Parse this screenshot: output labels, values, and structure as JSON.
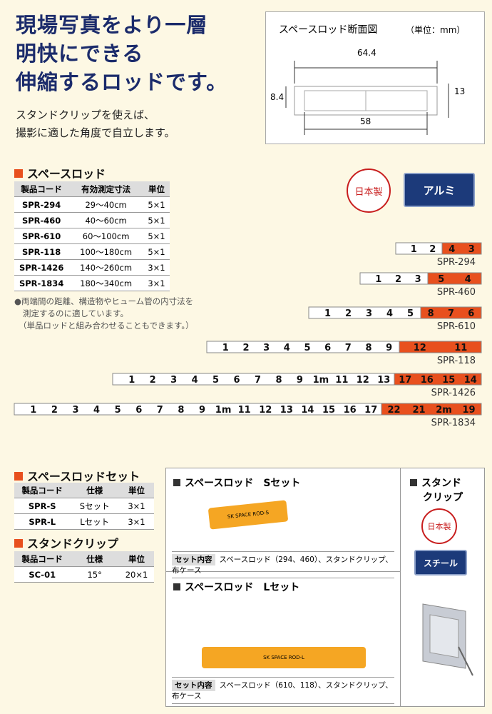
{
  "headline": [
    "現場写真をより一層",
    "明快にできる",
    "伸縮するロッドです。"
  ],
  "intro": [
    "スタンドクリップを使えば、",
    "撮影に適した角度で自立します。"
  ],
  "cross_section": {
    "title": "スペースロッド断面図",
    "unit": "（単位：mm）",
    "width_outer": "64.4",
    "height_left": "8.4",
    "height_right": "13",
    "width_inner": "58"
  },
  "space_rod": {
    "title": "スペースロッド",
    "header": [
      "製品コード",
      "有効測定寸法",
      "単位"
    ],
    "rows": [
      [
        "SPR-294",
        "29～40cm",
        "5×1"
      ],
      [
        "SPR-460",
        "40～60cm",
        "5×1"
      ],
      [
        "SPR-610",
        "60～100cm",
        "5×1"
      ],
      [
        "SPR-118",
        "100～180cm",
        "5×1"
      ],
      [
        "SPR-1426",
        "140～260cm",
        "3×1"
      ],
      [
        "SPR-1834",
        "180～340cm",
        "3×1"
      ]
    ],
    "notes": [
      "●両端間の距離、構造物やヒューム管の内寸法を",
      "測定するのに適しています。",
      "（単品ロッドと組み合わせることもできます。）"
    ],
    "badge_origin": "日本製",
    "badge_material": "アルミ"
  },
  "rods": [
    {
      "label": "SPR-294",
      "white": [
        "1",
        "2"
      ],
      "orange": [
        "4",
        "3"
      ]
    },
    {
      "label": "SPR-460",
      "white": [
        "1",
        "2",
        "3"
      ],
      "orange": [
        "5",
        "4"
      ]
    },
    {
      "label": "SPR-610",
      "white": [
        "1",
        "2",
        "3",
        "4",
        "5"
      ],
      "orange": [
        "8",
        "7",
        "6"
      ]
    },
    {
      "label": "SPR-118",
      "white": [
        "1",
        "2",
        "3",
        "4",
        "5",
        "6",
        "7",
        "8",
        "9"
      ],
      "orange": [
        "12",
        "11"
      ]
    },
    {
      "label": "SPR-1426",
      "white": [
        "1",
        "2",
        "3",
        "4",
        "5",
        "6",
        "7",
        "8",
        "9",
        "1m",
        "11",
        "12",
        "13"
      ],
      "orange": [
        "17",
        "16",
        "15",
        "14"
      ]
    },
    {
      "label": "SPR-1834",
      "white": [
        "1",
        "2",
        "3",
        "4",
        "5",
        "6",
        "7",
        "8",
        "9",
        "1m",
        "11",
        "12",
        "13",
        "14",
        "15",
        "16",
        "17"
      ],
      "orange": [
        "22",
        "21",
        "2m",
        "19"
      ]
    }
  ],
  "rod_set": {
    "title": "スペースロッドセット",
    "header": [
      "製品コード",
      "仕様",
      "単位"
    ],
    "rows": [
      [
        "SPR-S",
        "Sセット",
        "3×1"
      ],
      [
        "SPR-L",
        "Lセット",
        "3×1"
      ]
    ]
  },
  "stand_clip": {
    "title": "スタンドクリップ",
    "header": [
      "製品コード",
      "仕様",
      "単位"
    ],
    "rows": [
      [
        "SC-01",
        "15°",
        "20×1"
      ]
    ]
  },
  "s_set": {
    "title": "スペースロッド　Sセット",
    "bag": "SK SPACE ROD-S",
    "content_label": "セット内容",
    "content": "スペースロッド（294、460）、スタンドクリップ、布ケース"
  },
  "l_set": {
    "title": "スペースロッド　Lセット",
    "bag": "SK SPACE ROD-L",
    "content_label": "セット内容",
    "content": "スペースロッド（610、118）、スタンドクリップ、布ケース"
  },
  "clip_box": {
    "title": [
      "スタンド",
      "クリップ"
    ],
    "badge_origin": "日本製",
    "badge_material": "スチール"
  }
}
